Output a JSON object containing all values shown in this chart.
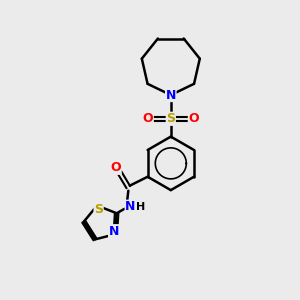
{
  "background_color": "#ebebeb",
  "line_color": "#000000",
  "bond_width": 1.8,
  "atom_colors": {
    "N": "#0000ff",
    "O": "#ff0000",
    "S_sulfonyl": "#b8a000",
    "S_thiazole": "#b8a000",
    "C": "#000000",
    "H": "#000000"
  },
  "figsize": [
    3.0,
    3.0
  ],
  "dpi": 100
}
